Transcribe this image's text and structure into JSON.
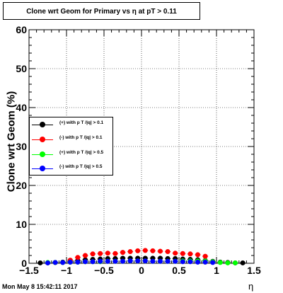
{
  "timestamp": "Mon May  8 15:42:11 2017",
  "chart_data": {
    "type": "scatter",
    "title": "Clone wrt Geom for Primary vs   η at pT > 0.11",
    "xlabel": "η",
    "ylabel": "Clone wrt Geom (%)",
    "xlim": [
      -1.5,
      1.5
    ],
    "ylim": [
      0,
      60
    ],
    "x_ticks": [
      "−1.5",
      "−1",
      "−0.5",
      "0",
      "0.5",
      "1",
      "1.5"
    ],
    "y_ticks": [
      "0",
      "10",
      "20",
      "30",
      "40",
      "50",
      "60"
    ],
    "grid": true,
    "legend_position": "middle-left",
    "series": [
      {
        "name": "(+) with p T /|q| > 0.1",
        "color": "#000000",
        "x": [
          -1.35,
          -1.25,
          -1.15,
          -1.05,
          -0.95,
          -0.85,
          -0.75,
          -0.65,
          -0.55,
          -0.45,
          -0.35,
          -0.25,
          -0.15,
          -0.05,
          0.05,
          0.15,
          0.25,
          0.35,
          0.45,
          0.55,
          0.65,
          0.75,
          0.85,
          0.95,
          1.05,
          1.15,
          1.25,
          1.35
        ],
        "y": [
          0.1,
          0.1,
          0.2,
          0.3,
          0.5,
          0.7,
          0.9,
          1.0,
          1.1,
          1.2,
          1.2,
          1.3,
          1.3,
          1.3,
          1.3,
          1.3,
          1.3,
          1.2,
          1.2,
          1.1,
          1.0,
          0.9,
          0.7,
          0.5,
          0.3,
          0.2,
          0.1,
          0.1
        ]
      },
      {
        "name": "(-) with p T /|q| > 0.1",
        "color": "#ff0000",
        "x": [
          -0.95,
          -0.85,
          -0.75,
          -0.65,
          -0.55,
          -0.45,
          -0.35,
          -0.25,
          -0.15,
          -0.05,
          0.05,
          0.15,
          0.25,
          0.35,
          0.45,
          0.55,
          0.65,
          0.75,
          0.85
        ],
        "y": [
          0.8,
          1.5,
          2.0,
          2.4,
          2.5,
          2.6,
          2.5,
          2.8,
          3.0,
          3.2,
          3.3,
          3.2,
          3.1,
          3.0,
          2.6,
          2.5,
          2.4,
          2.2,
          1.8
        ]
      },
      {
        "name": "(+) with p T /|q| > 0.5",
        "color": "#00ff00",
        "x": [
          -1.25,
          -1.15,
          -1.05,
          -0.95,
          -0.85,
          -0.75,
          -0.65,
          -0.55,
          -0.45,
          -0.35,
          -0.25,
          -0.15,
          -0.05,
          0.05,
          0.15,
          0.25,
          0.35,
          0.45,
          0.55,
          0.65,
          0.75,
          0.85,
          0.95,
          1.05,
          1.15,
          1.25
        ],
        "y": [
          0.2,
          0.2,
          0.2,
          0.3,
          0.3,
          0.4,
          0.4,
          0.4,
          0.5,
          0.5,
          0.5,
          0.6,
          0.6,
          0.6,
          0.5,
          0.5,
          0.5,
          0.5,
          0.6,
          0.6,
          0.6,
          0.6,
          0.4,
          0.2,
          0.1,
          0.1
        ]
      },
      {
        "name": "(-) with p T /|q| > 0.5",
        "color": "#0000ff",
        "x": [
          -1.25,
          -1.15,
          -1.05,
          -0.95,
          -0.85,
          -0.75,
          -0.65,
          -0.55,
          -0.45,
          -0.35,
          -0.25,
          -0.15,
          -0.05,
          0.05,
          0.15,
          0.25,
          0.35,
          0.45,
          0.55,
          0.65,
          0.75,
          0.85,
          0.95
        ],
        "y": [
          0.1,
          0.2,
          0.2,
          0.3,
          0.3,
          0.4,
          0.4,
          0.5,
          0.5,
          0.5,
          0.5,
          0.6,
          0.6,
          0.6,
          0.5,
          0.5,
          0.5,
          0.5,
          0.4,
          0.4,
          0.3,
          0.3,
          0.2
        ]
      }
    ]
  }
}
